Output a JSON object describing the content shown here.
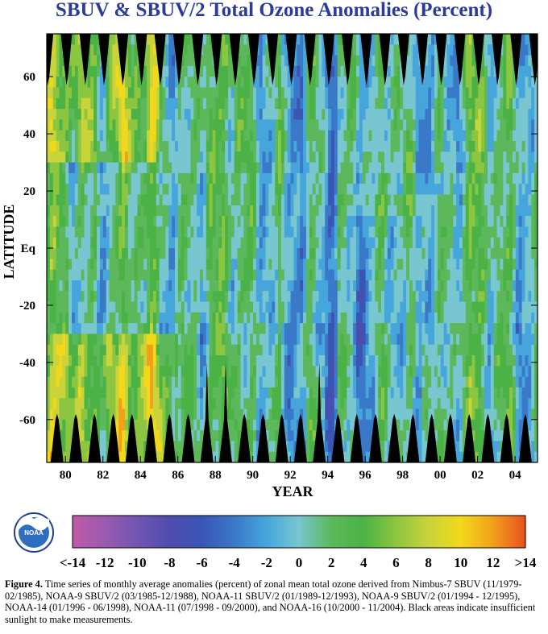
{
  "chart_data": {
    "type": "heatmap",
    "title": "SBUV & SBUV/2 Total Ozone Anomalies (Percent)",
    "xlabel": "YEAR",
    "ylabel": "LATITUDE",
    "xlim": [
      1979.0,
      2005.2
    ],
    "ylim": [
      -75,
      75
    ],
    "x_ticks": [
      {
        "value": 1980,
        "label": "80"
      },
      {
        "value": 1982,
        "label": "82"
      },
      {
        "value": 1984,
        "label": "84"
      },
      {
        "value": 1986,
        "label": "86"
      },
      {
        "value": 1988,
        "label": "88"
      },
      {
        "value": 1990,
        "label": "90"
      },
      {
        "value": 1992,
        "label": "92"
      },
      {
        "value": 1994,
        "label": "94"
      },
      {
        "value": 1996,
        "label": "96"
      },
      {
        "value": 1998,
        "label": "98"
      },
      {
        "value": 2000,
        "label": "00"
      },
      {
        "value": 2002,
        "label": "02"
      },
      {
        "value": 2004,
        "label": "04"
      }
    ],
    "y_ticks": [
      {
        "value": 60,
        "label": "60"
      },
      {
        "value": 40,
        "label": "40"
      },
      {
        "value": 20,
        "label": "20"
      },
      {
        "value": 0,
        "label": "Eq"
      },
      {
        "value": -20,
        "label": "-20"
      },
      {
        "value": -40,
        "label": "-40"
      },
      {
        "value": -60,
        "label": "-60"
      }
    ],
    "colorbar": {
      "range": [
        -14,
        14
      ],
      "ticks": [
        {
          "value": -14,
          "label": "<-14"
        },
        {
          "value": -12,
          "label": "-12"
        },
        {
          "value": -10,
          "label": "-10"
        },
        {
          "value": -8,
          "label": "-8"
        },
        {
          "value": -6,
          "label": "-6"
        },
        {
          "value": -4,
          "label": "-4"
        },
        {
          "value": -2,
          "label": "-2"
        },
        {
          "value": 0,
          "label": "0"
        },
        {
          "value": 2,
          "label": "2"
        },
        {
          "value": 4,
          "label": "4"
        },
        {
          "value": 6,
          "label": "6"
        },
        {
          "value": 8,
          "label": "8"
        },
        {
          "value": 10,
          "label": "10"
        },
        {
          "value": 12,
          "label": "12"
        },
        {
          "value": 14,
          "label": ">14"
        }
      ],
      "colors": [
        "#c05aa8",
        "#9a5ab0",
        "#7255b2",
        "#4f4cae",
        "#3a55b4",
        "#3a78c8",
        "#46a6dc",
        "#78c6cf",
        "#5cb85a",
        "#4bb246",
        "#8cc640",
        "#c8d43a",
        "#f2d81a",
        "#f2a01a",
        "#e8501e"
      ]
    },
    "no_data_color": "#000000",
    "no_data_note": "Black areas indicate insufficient sunlight to make measurements."
  },
  "caption": {
    "label": "Figure 4.",
    "text": " Time series of monthly average anomalies (percent) of zonal mean total ozone derived from Nimbus-7 SBUV (11/1979-02/1985), NOAA-9 SBUV/2 (03/1985-12/1988), NOAA-11 SBUV/2 (01/1989-12/1993), NOAA-9 SBUV/2 (01/1994 - 12/1995), NOAA-14 (01/1996 - 06/1998), NOAA-11 (07/1998 - 09/2000), and NOAA-16 (10/2000 - 11/2004).  Black areas indicate insufficient sunlight to make measurements."
  },
  "logo": {
    "text": "NOAA",
    "icon": "noaa-logo-icon"
  }
}
